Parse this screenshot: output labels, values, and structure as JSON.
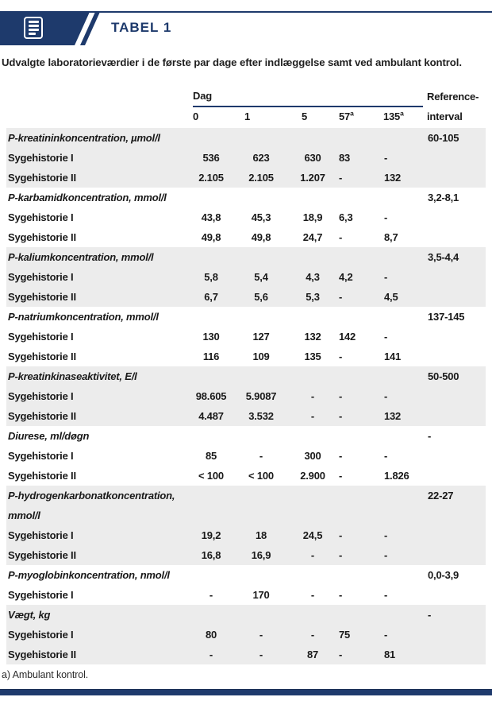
{
  "header": {
    "tag": "TABEL 1",
    "subtitle": "Udvalgte laboratorieværdier i de første par dage efter indlæggelse samt ved ambulant kontrol."
  },
  "table": {
    "day_label": "Dag",
    "reference_label_line1": "Reference-",
    "reference_label_line2": "interval",
    "day_headers": [
      {
        "label": "0",
        "sup": ""
      },
      {
        "label": "1",
        "sup": ""
      },
      {
        "label": "5",
        "sup": ""
      },
      {
        "label": "57",
        "sup": "a"
      },
      {
        "label": "135",
        "sup": "a"
      }
    ],
    "groups": [
      {
        "name": "P-kreatininkoncentration, µmol/l",
        "reference": "60-105",
        "rows": [
          {
            "label": "Sygehistorie I",
            "values": [
              "536",
              "623",
              "630",
              "83",
              "-"
            ]
          },
          {
            "label": "Sygehistorie II",
            "values": [
              "2.105",
              "2.105",
              "1.207",
              "-",
              "132"
            ]
          }
        ]
      },
      {
        "name": "P-karbamidkoncentration, mmol/l",
        "reference": "3,2-8,1",
        "rows": [
          {
            "label": "Sygehistorie I",
            "values": [
              "43,8",
              "45,3",
              "18,9",
              "6,3",
              "-"
            ]
          },
          {
            "label": "Sygehistorie II",
            "values": [
              "49,8",
              "49,8",
              "24,7",
              "-",
              "8,7"
            ]
          }
        ]
      },
      {
        "name": "P-kaliumkoncentration, mmol/l",
        "reference": "3,5-4,4",
        "rows": [
          {
            "label": "Sygehistorie I",
            "values": [
              "5,8",
              "5,4",
              "4,3",
              "4,2",
              "-"
            ]
          },
          {
            "label": "Sygehistorie II",
            "values": [
              "6,7",
              "5,6",
              "5,3",
              "-",
              "4,5"
            ]
          }
        ]
      },
      {
        "name": "P-natriumkoncentration, mmol/l",
        "reference": "137-145",
        "rows": [
          {
            "label": "Sygehistorie I",
            "values": [
              "130",
              "127",
              "132",
              "142",
              "-"
            ]
          },
          {
            "label": "Sygehistorie II",
            "values": [
              "116",
              "109",
              "135",
              "-",
              "141"
            ]
          }
        ]
      },
      {
        "name": "P-kreatinkinaseaktivitet, E/l",
        "reference": "50-500",
        "rows": [
          {
            "label": "Sygehistorie I",
            "values": [
              "98.605",
              "5.9087",
              "-",
              "-",
              "-"
            ]
          },
          {
            "label": "Sygehistorie II",
            "values": [
              "4.487",
              "3.532",
              "-",
              "-",
              "132"
            ]
          }
        ]
      },
      {
        "name": "Diurese, ml/døgn",
        "reference": "-",
        "rows": [
          {
            "label": "Sygehistorie I",
            "values": [
              "85",
              "-",
              "300",
              "-",
              "-"
            ]
          },
          {
            "label": "Sygehistorie II",
            "values": [
              "< 100",
              "< 100",
              "2.900",
              "-",
              "1.826"
            ]
          }
        ]
      },
      {
        "name": "P-hydrogenkarbonatkoncentration, mmol/l",
        "reference": "22-27",
        "rows": [
          {
            "label": "Sygehistorie I",
            "values": [
              "19,2",
              "18",
              "24,5",
              "-",
              "-"
            ]
          },
          {
            "label": "Sygehistorie II",
            "values": [
              "16,8",
              "16,9",
              "-",
              "-",
              "-"
            ]
          }
        ]
      },
      {
        "name": "P-myoglobinkoncentration, nmol/l",
        "reference": "0,0-3,9",
        "rows": [
          {
            "label": "Sygehistorie I",
            "values": [
              "-",
              "170",
              "-",
              "-",
              "-"
            ]
          }
        ]
      },
      {
        "name": "Vægt, kg",
        "reference": "-",
        "rows": [
          {
            "label": "Sygehistorie I",
            "values": [
              "80",
              "-",
              "-",
              "75",
              "-"
            ]
          },
          {
            "label": "Sygehistorie II",
            "values": [
              "-",
              "-",
              "87",
              "-",
              "81"
            ]
          }
        ]
      }
    ]
  },
  "footnote": "a) Ambulant kontrol.",
  "colors": {
    "navy": "#1e3a6c",
    "row_shade": "#ececec",
    "text": "#191919"
  }
}
